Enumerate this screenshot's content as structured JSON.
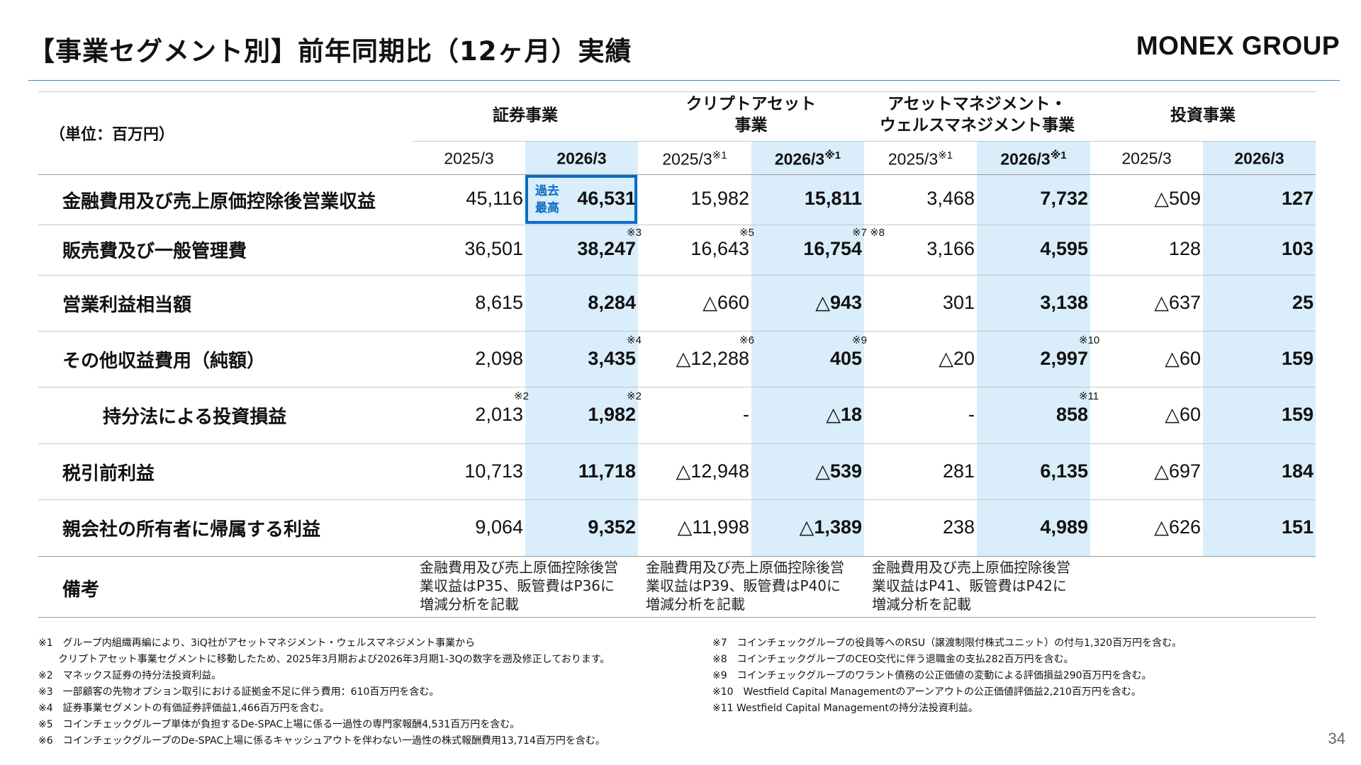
{
  "title": "【事業セグメント別】前年同期比（12ヶ月）実績",
  "brand": "MONEX GROUP",
  "unit_label": "（単位：百万円）",
  "segments": [
    {
      "line1": "証券事業",
      "line2": ""
    },
    {
      "line1": "クリプトアセット",
      "line2": "事業"
    },
    {
      "line1": "アセットマネジメント・",
      "line2": "ウェルスマネジメント事業"
    },
    {
      "line1": "投資事業",
      "line2": ""
    }
  ],
  "years": [
    {
      "label": "2025/3",
      "sup": ""
    },
    {
      "label": "2026/3",
      "sup": ""
    },
    {
      "label": "2025/3",
      "sup": "※1"
    },
    {
      "label": "2026/3",
      "sup": "※1"
    },
    {
      "label": "2025/3",
      "sup": "※1"
    },
    {
      "label": "2026/3",
      "sup": "※1"
    },
    {
      "label": "2025/3",
      "sup": ""
    },
    {
      "label": "2026/3",
      "sup": ""
    }
  ],
  "record_label": {
    "line1": "過去",
    "line2": "最高"
  },
  "rows": [
    {
      "label": "金融費用及び売上原価控除後営業収益",
      "values": [
        "45,116",
        "46,531",
        "15,982",
        "15,811",
        "3,468",
        "7,732",
        "△509",
        "127"
      ]
    },
    {
      "label": "販売費及び一般管理費",
      "values": [
        "36,501",
        "38,247",
        "16,643",
        "16,754",
        "3,166",
        "4,595",
        "128",
        "103"
      ]
    },
    {
      "label": "営業利益相当額",
      "values": [
        "8,615",
        "8,284",
        "△660",
        "△943",
        "301",
        "3,138",
        "△637",
        "25"
      ]
    },
    {
      "label": "その他収益費用（純額）",
      "values": [
        "2,098",
        "3,435",
        "△12,288",
        "405",
        "△20",
        "2,997",
        "△60",
        "159"
      ]
    },
    {
      "label": "持分法による投資損益",
      "values": [
        "2,013",
        "1,982",
        "-",
        "△18",
        "-",
        "858",
        "△60",
        "159"
      ]
    },
    {
      "label": "税引前利益",
      "values": [
        "10,713",
        "11,718",
        "△12,948",
        "△539",
        "281",
        "6,135",
        "△697",
        "184"
      ]
    },
    {
      "label": "親会社の所有者に帰属する利益",
      "values": [
        "9,064",
        "9,352",
        "△11,998",
        "△1,389",
        "238",
        "4,989",
        "△626",
        "151"
      ]
    }
  ],
  "marks": {
    "m3": "※3",
    "m5": "※5",
    "m7_8": "※7 ※8",
    "m4": "※4",
    "m6": "※6",
    "m9": "※9",
    "m10": "※10",
    "m2a": "※2",
    "m2b": "※2",
    "m11": "※11"
  },
  "remarks": {
    "label": "備考",
    "notes": [
      {
        "l1": "金融費用及び売上原価控除後営",
        "l2": "業収益はP35、販管費はP36に",
        "l3": "増減分析を記載"
      },
      {
        "l1": "金融費用及び売上原価控除後営",
        "l2": "業収益はP39、販管費はP40に",
        "l3": "増減分析を記載"
      },
      {
        "l1": "金融費用及び売上原価控除後営",
        "l2": "業収益はP41、販管費はP42に",
        "l3": "増減分析を記載"
      }
    ]
  },
  "footnotes_left": [
    "※1　グループ内組織再編により、3iQ社がアセットマネジメント・ウェルスマネジメント事業から",
    "　　クリプトアセット事業セグメントに移動したため、2025年3月期および2026年3月期1-3Qの数字を遡及修正しております。",
    "※2　マネックス証券の持分法投資利益。",
    "※3　一部顧客の先物オプション取引における証拠金不足に伴う費用：610百万円を含む。",
    "※4　証券事業セグメントの有価証券評価益1,466百万円を含む。",
    "※5　コインチェックグループ単体が負担するDe-SPAC上場に係る一過性の専門家報酬4,531百万円を含む。",
    "※6　コインチェックグループのDe-SPAC上場に係るキャッシュアウトを伴わない一過性の株式報酬費用13,714百万円を含む。"
  ],
  "footnotes_right": [
    "※7　コインチェックグループの役員等へのRSU（譲渡制限付株式ユニット）の付与1,320百万円を含む。",
    "※8　コインチェックグループのCEO交代に伴う退職金の支払282百万円を含む。",
    "※9　コインチェックグループのワラント債務の公正価値の変動による評価損益290百万円を含む。",
    "※10　Westfield Capital Managementのアーンアウトの公正価値評価益2,210百万円を含む。",
    "※11 Westfield Capital Managementの持分法投資利益。"
  ],
  "page_number": "34"
}
